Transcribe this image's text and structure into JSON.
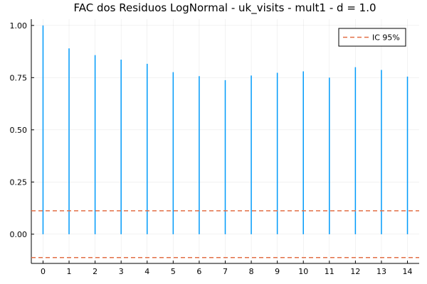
{
  "chart_data": {
    "type": "bar",
    "title": "FAC dos Residuos  LogNormal - uk_visits - mult1 - d = 1.0",
    "xlabel": "",
    "ylabel": "",
    "x": [
      0,
      1,
      2,
      3,
      4,
      5,
      6,
      7,
      8,
      9,
      10,
      11,
      12,
      13,
      14
    ],
    "x_ticks": [
      "0",
      "1",
      "2",
      "3",
      "4",
      "5",
      "6",
      "7",
      "8",
      "9",
      "10",
      "11",
      "12",
      "13",
      "14"
    ],
    "y_ticks": [
      "0.00",
      "0.25",
      "0.50",
      "0.75",
      "1.00"
    ],
    "y_tick_values": [
      0,
      0.25,
      0.5,
      0.75,
      1.0
    ],
    "xlim": [
      -0.45,
      14.45
    ],
    "ylim": [
      -0.14,
      1.03
    ],
    "grid": true,
    "legend_position": "top-right",
    "series": [
      {
        "values": [
          1.0,
          0.89,
          0.858,
          0.836,
          0.816,
          0.776,
          0.757,
          0.738,
          0.76,
          0.773,
          0.78,
          0.75,
          0.8,
          0.787,
          0.755
        ],
        "color": "#009AFA"
      }
    ],
    "ci": {
      "name": "IC 95%",
      "upper": 0.112,
      "lower": -0.112,
      "color": "#E26F46"
    }
  }
}
